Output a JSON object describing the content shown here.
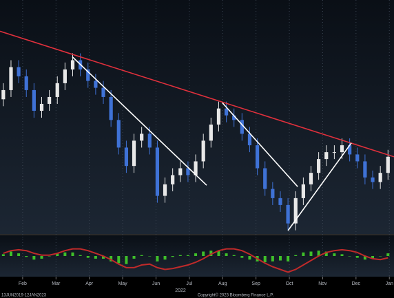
{
  "chart_data": {
    "type": "candlestick",
    "x": [
      0.42,
      0.65,
      0.88,
      1.11,
      1.34,
      1.57,
      1.8,
      2.04,
      2.27,
      2.5,
      2.73,
      2.96,
      3.19,
      3.42,
      3.65,
      3.88,
      4.11,
      4.34,
      4.57,
      4.81,
      5.04,
      5.27,
      5.5,
      5.73,
      5.96,
      6.19,
      6.42,
      6.65,
      6.88,
      7.11,
      7.34,
      7.58,
      7.81,
      8.04,
      8.27,
      8.5,
      8.73,
      8.96,
      9.19,
      9.42,
      9.65,
      9.88,
      10.11,
      10.35,
      10.58,
      10.81,
      11.04,
      11.27,
      11.5,
      11.73,
      11.96
    ],
    "open": [
      58,
      62,
      72,
      68,
      62,
      53,
      56,
      59,
      65,
      71,
      75,
      71,
      66,
      63,
      59,
      49,
      37,
      29,
      40,
      43,
      37,
      16,
      21,
      25,
      28,
      25,
      31,
      40,
      47,
      54,
      51,
      49,
      43,
      38,
      28,
      19,
      15,
      12,
      4,
      15,
      21,
      26,
      32,
      35,
      35,
      38,
      34,
      31,
      24,
      22,
      26
    ],
    "high": [
      65,
      75,
      75,
      71,
      65,
      59,
      62,
      68,
      74,
      78,
      78,
      74,
      69,
      66,
      62,
      52,
      40,
      43,
      46,
      46,
      40,
      24,
      28,
      31,
      31,
      34,
      43,
      50,
      57,
      57,
      54,
      52,
      46,
      41,
      31,
      22,
      18,
      15,
      18,
      24,
      29,
      35,
      38,
      38,
      41,
      41,
      37,
      34,
      27,
      29,
      36
    ],
    "low": [
      55,
      59,
      65,
      59,
      50,
      50,
      53,
      56,
      62,
      68,
      68,
      63,
      60,
      56,
      46,
      34,
      26,
      26,
      37,
      34,
      13,
      13,
      18,
      22,
      22,
      22,
      28,
      37,
      44,
      48,
      46,
      40,
      35,
      25,
      16,
      12,
      9,
      1,
      1,
      12,
      18,
      23,
      29,
      32,
      32,
      31,
      28,
      21,
      19,
      19,
      23
    ],
    "close": [
      62,
      72,
      68,
      62,
      53,
      56,
      59,
      65,
      71,
      75,
      71,
      66,
      63,
      59,
      49,
      37,
      29,
      40,
      43,
      37,
      16,
      21,
      25,
      28,
      25,
      31,
      40,
      47,
      54,
      51,
      49,
      43,
      38,
      28,
      19,
      15,
      12,
      4,
      15,
      21,
      26,
      32,
      35,
      35,
      38,
      34,
      31,
      24,
      22,
      26,
      33
    ],
    "up_color": "#e8e8e8",
    "down_color": "#3f72d6",
    "xlim": [
      0.32,
      12.14
    ],
    "ylim": [
      0,
      100
    ],
    "xticks": [
      {
        "value": 1,
        "label": "Feb"
      },
      {
        "value": 2,
        "label": "Mar"
      },
      {
        "value": 3,
        "label": "Apr"
      },
      {
        "value": 4,
        "label": "May"
      },
      {
        "value": 5,
        "label": "Jun"
      },
      {
        "value": 6,
        "label": "Jul"
      },
      {
        "value": 7,
        "label": "Aug"
      },
      {
        "value": 8,
        "label": "Sep"
      },
      {
        "value": 9,
        "label": "Oct"
      },
      {
        "value": 10,
        "label": "Nov"
      },
      {
        "value": 11,
        "label": "Dec"
      },
      {
        "value": 12,
        "label": "Jan"
      }
    ],
    "grid": true,
    "year_label": "2022",
    "trendlines": [
      {
        "color": "#e0303c",
        "x": [
          0.32,
          12.14
        ],
        "y": [
          87.6,
          33
        ]
      },
      {
        "color": "#ffffff",
        "x": [
          2.49,
          6.52
        ],
        "y": [
          76.5,
          20.6
        ]
      },
      {
        "color": "#ffffff",
        "x": [
          6.99,
          9.25
        ],
        "y": [
          56.5,
          20
        ]
      },
      {
        "color": "#ffffff",
        "x": [
          8.96,
          10.86
        ],
        "y": [
          0.9,
          39
        ]
      }
    ],
    "oscillator": {
      "ylim": [
        -20,
        20
      ],
      "histogram": {
        "color": "#3fbf2a",
        "values": [
          2,
          5,
          3,
          -1,
          -4,
          -3,
          0,
          3,
          4,
          4,
          1,
          -2,
          -3,
          -3,
          -6,
          -8,
          -9,
          -3,
          1,
          0,
          -6,
          -4,
          -1,
          1,
          1,
          3,
          5,
          6,
          6,
          3,
          1,
          -2,
          -4,
          -6,
          -7,
          -6,
          -5,
          -6,
          1,
          4,
          5,
          6,
          5,
          3,
          2,
          0,
          -2,
          -4,
          -3,
          0,
          3
        ]
      },
      "line": {
        "color": "#c02a2a",
        "values": [
          3,
          6,
          7,
          6,
          3,
          1,
          1,
          3,
          6,
          8,
          8,
          6,
          3,
          0,
          -4,
          -9,
          -13,
          -13,
          -10,
          -9,
          -13,
          -15,
          -14,
          -12,
          -10,
          -7,
          -3,
          2,
          6,
          8,
          8,
          6,
          2,
          -3,
          -8,
          -12,
          -15,
          -18,
          -15,
          -10,
          -5,
          0,
          4,
          6,
          7,
          6,
          4,
          0,
          -3,
          -4,
          -2
        ]
      }
    },
    "range_label": "13JUN2019-12JAN2023",
    "copyright": "Copyright© 2023 Bloomberg Finance L.P."
  }
}
